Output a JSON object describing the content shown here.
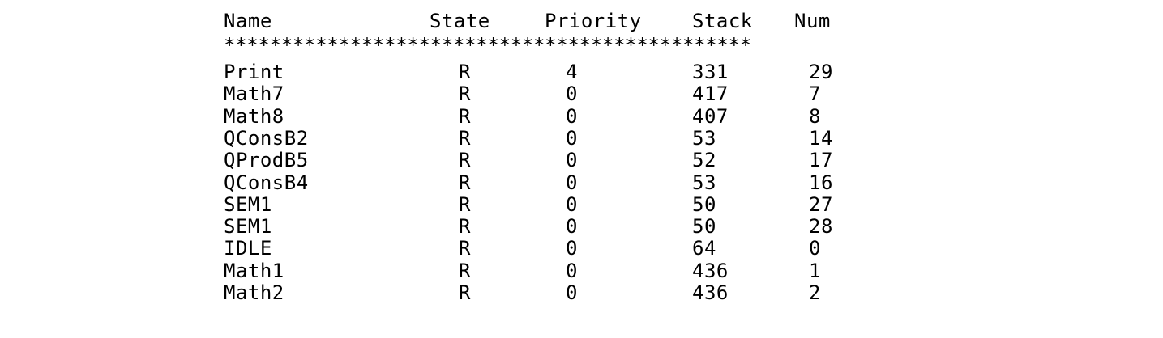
{
  "table": {
    "headers": {
      "name": "Name",
      "state": "State",
      "priority": "Priority",
      "stack": "Stack",
      "num": "Num"
    },
    "separator": "**********************************************",
    "rows": [
      {
        "name": "Print",
        "state": "R",
        "priority": "4",
        "stack": "331",
        "num": "29"
      },
      {
        "name": "Math7",
        "state": "R",
        "priority": "0",
        "stack": "417",
        "num": "7"
      },
      {
        "name": "Math8",
        "state": "R",
        "priority": "0",
        "stack": "407",
        "num": "8"
      },
      {
        "name": "QConsB2",
        "state": "R",
        "priority": "0",
        "stack": "53",
        "num": "14"
      },
      {
        "name": "QProdB5",
        "state": "R",
        "priority": "0",
        "stack": "52",
        "num": "17"
      },
      {
        "name": "QConsB4",
        "state": "R",
        "priority": "0",
        "stack": "53",
        "num": "16"
      },
      {
        "name": "SEM1",
        "state": "R",
        "priority": "0",
        "stack": "50",
        "num": "27"
      },
      {
        "name": "SEM1",
        "state": "R",
        "priority": "0",
        "stack": "50",
        "num": "28"
      },
      {
        "name": "IDLE",
        "state": "R",
        "priority": "0",
        "stack": "64",
        "num": "0"
      },
      {
        "name": "Math1",
        "state": "R",
        "priority": "0",
        "stack": "436",
        "num": "1"
      },
      {
        "name": "Math2",
        "state": "R",
        "priority": "0",
        "stack": "436",
        "num": "2"
      }
    ]
  }
}
